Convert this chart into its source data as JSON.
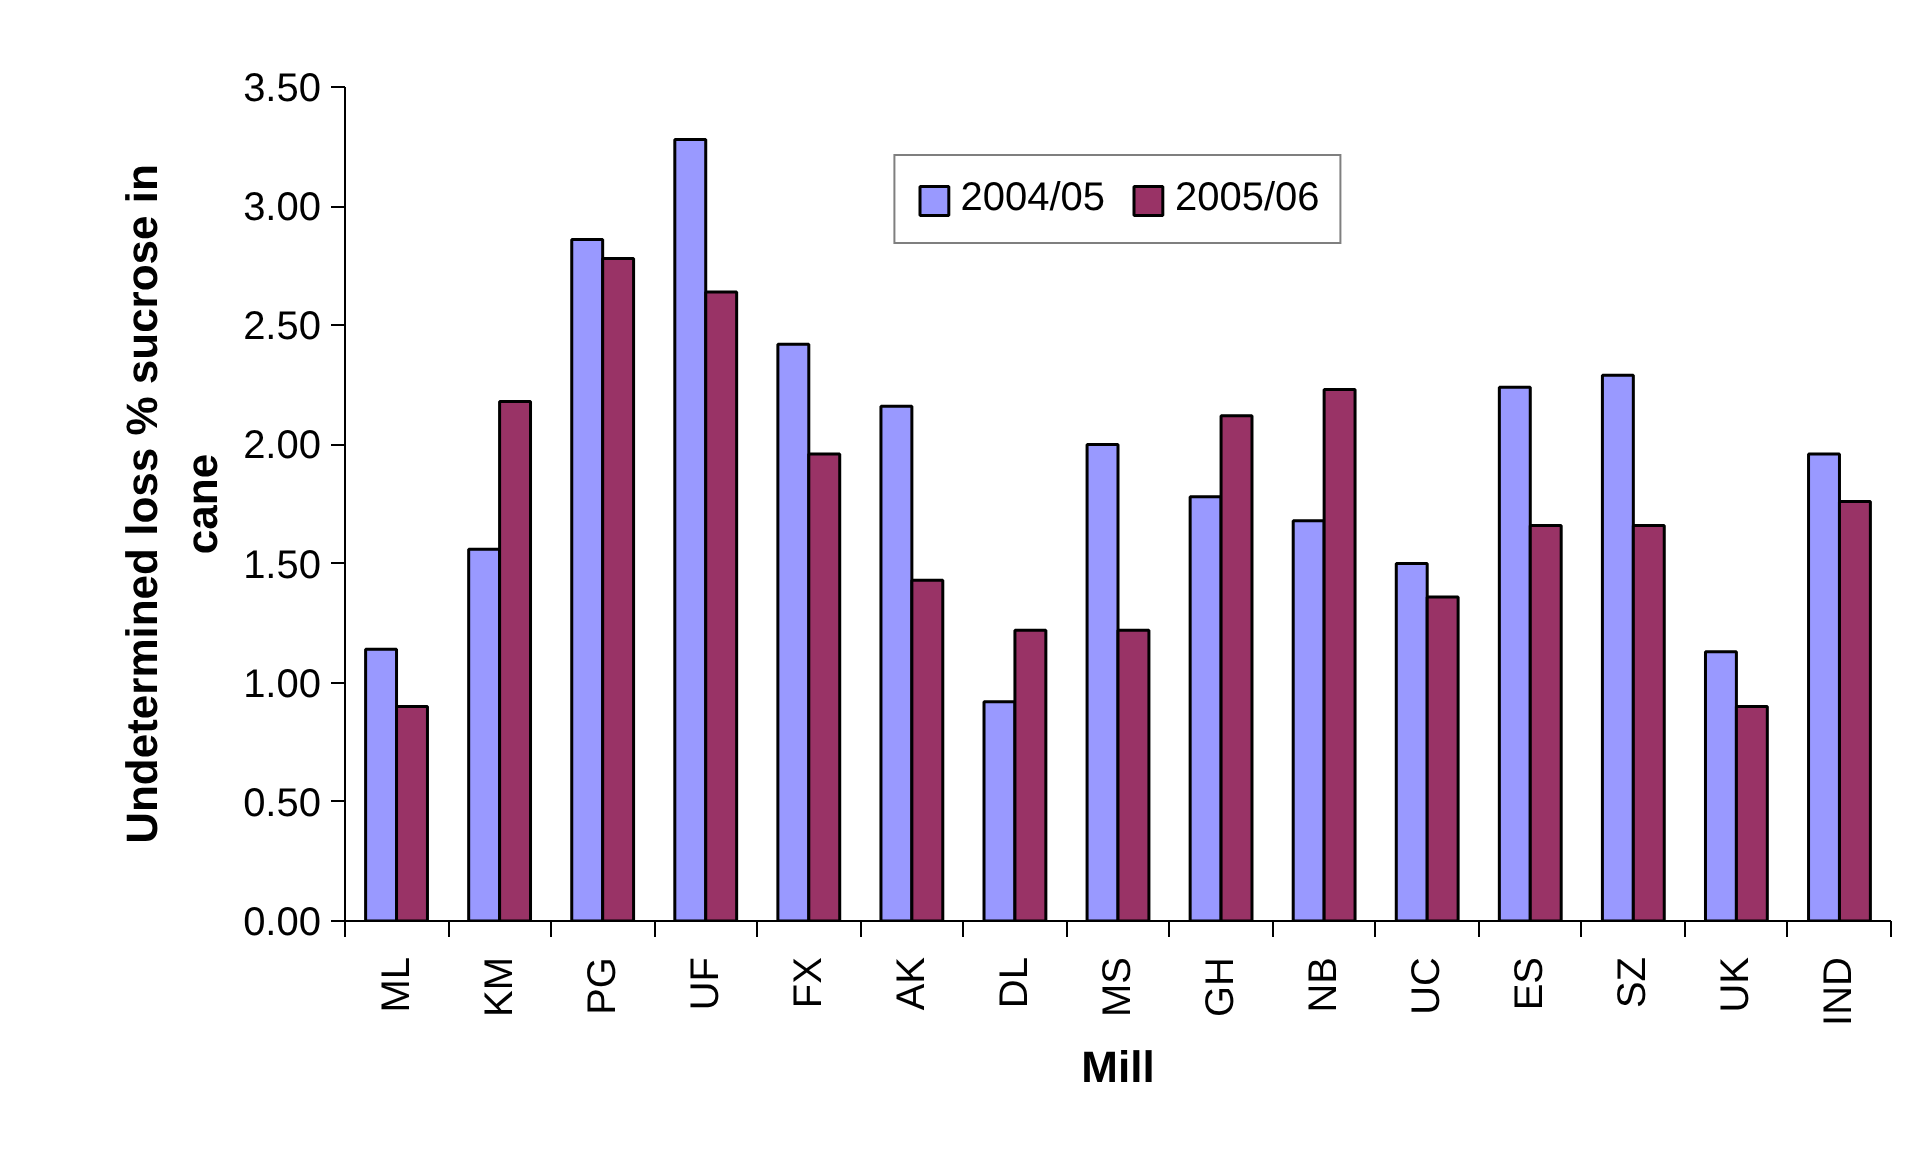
{
  "chart_data": {
    "type": "bar",
    "xlabel": "Mill",
    "ylabel": "Undetermined loss % sucrose in cane",
    "categories": [
      "ML",
      "KM",
      "PG",
      "UF",
      "FX",
      "AK",
      "DL",
      "MS",
      "GH",
      "NB",
      "UC",
      "ES",
      "SZ",
      "UK",
      "IND"
    ],
    "series": [
      {
        "name": "2004/05",
        "color": "#9999ff",
        "values": [
          1.14,
          1.56,
          2.86,
          3.28,
          2.42,
          2.16,
          0.92,
          2.0,
          1.78,
          1.68,
          1.5,
          2.24,
          2.29,
          1.13,
          1.96
        ]
      },
      {
        "name": "2005/06",
        "color": "#993366",
        "values": [
          0.9,
          2.18,
          2.78,
          2.64,
          1.96,
          1.43,
          1.22,
          1.22,
          2.12,
          2.23,
          1.36,
          1.66,
          1.66,
          0.9,
          1.76
        ]
      }
    ],
    "ylim": [
      0,
      3.5
    ],
    "yticks": [
      {
        "value": 0,
        "label": "0.00"
      },
      {
        "value": 0.5,
        "label": "0.50"
      },
      {
        "value": 1,
        "label": "1.00"
      },
      {
        "value": 1.5,
        "label": "1.50"
      },
      {
        "value": 2,
        "label": "2.00"
      },
      {
        "value": 2.5,
        "label": "2.50"
      },
      {
        "value": 3,
        "label": "3.00"
      },
      {
        "value": 3.5,
        "label": "3.50"
      }
    ],
    "grid": false,
    "legend": "top"
  }
}
